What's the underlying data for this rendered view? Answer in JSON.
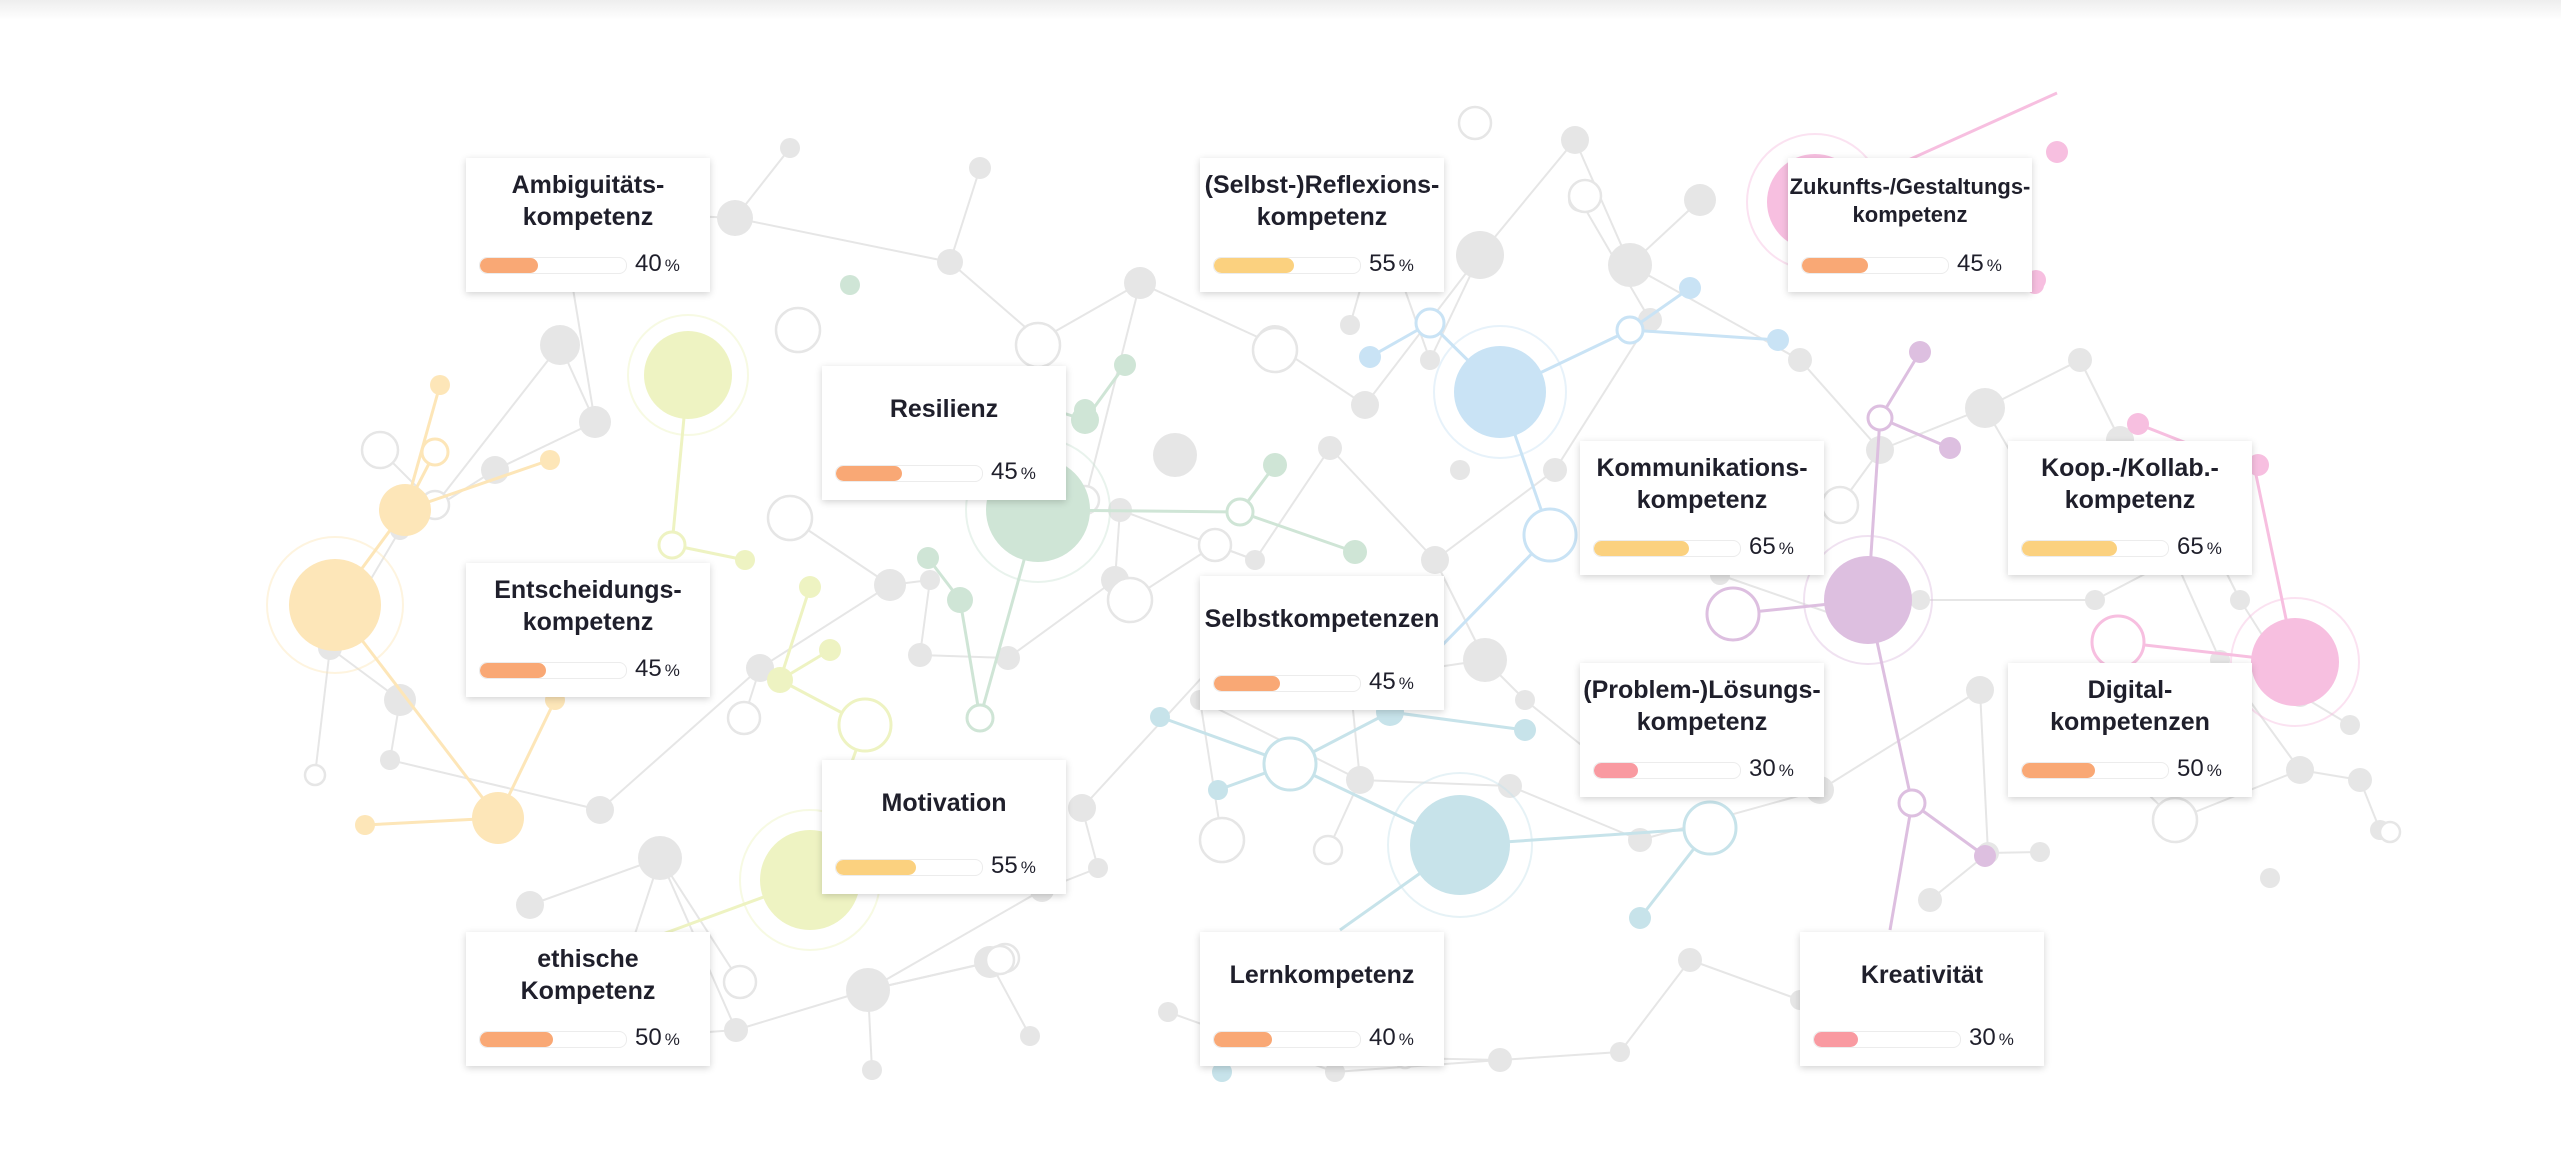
{
  "colors": {
    "orange": "#f9a875",
    "yellow": "#fbd17f",
    "red": "#f99aa1",
    "network_gray": "#e6e6e6",
    "network_yellow": "#fde6b8",
    "network_lime": "#eef3c2",
    "network_green": "#cfe5d6",
    "network_blue": "#c9e3f5",
    "network_teal": "#c7e3ea",
    "network_pink": "#f7bfe0",
    "network_purple": "#ddbfe0"
  },
  "competencies": [
    {
      "id": "ambiguitaet",
      "label": "Ambiguitäts- kompetenz",
      "percent": 40,
      "unit": "%",
      "color": "orange"
    },
    {
      "id": "selbstreflexion",
      "label": "(Selbst-)Reflexions- kompetenz",
      "percent": 55,
      "unit": "%",
      "color": "yellow"
    },
    {
      "id": "zukunft",
      "label": "Zukunfts-/Gestaltungs- kompetenz",
      "percent": 45,
      "unit": "%",
      "color": "orange"
    },
    {
      "id": "resilienz",
      "label": "Resilienz",
      "percent": 45,
      "unit": "%",
      "color": "orange"
    },
    {
      "id": "kommunikation",
      "label": "Kommunikations- kompetenz",
      "percent": 65,
      "unit": "%",
      "color": "yellow"
    },
    {
      "id": "kooperation",
      "label": "Koop.-/Kollab.- kompetenz",
      "percent": 65,
      "unit": "%",
      "color": "yellow"
    },
    {
      "id": "entscheidung",
      "label": "Entscheidungs- kompetenz",
      "percent": 45,
      "unit": "%",
      "color": "orange"
    },
    {
      "id": "selbstkompetenzen",
      "label": "Selbstkompetenzen",
      "percent": 45,
      "unit": "%",
      "color": "orange"
    },
    {
      "id": "problemloesung",
      "label": "(Problem-)Lösungs- kompetenz",
      "percent": 30,
      "unit": "%",
      "color": "red"
    },
    {
      "id": "digital",
      "label": "Digital- kompetenzen",
      "percent": 50,
      "unit": "%",
      "color": "orange"
    },
    {
      "id": "motivation",
      "label": "Motivation",
      "percent": 55,
      "unit": "%",
      "color": "yellow"
    },
    {
      "id": "ethik",
      "label": "ethische Kompetenz",
      "percent": 50,
      "unit": "%",
      "color": "orange"
    },
    {
      "id": "lernkompetenz",
      "label": "Lernkompetenz",
      "percent": 40,
      "unit": "%",
      "color": "orange"
    },
    {
      "id": "kreativitaet",
      "label": "Kreativität",
      "percent": 30,
      "unit": "%",
      "color": "red"
    }
  ]
}
